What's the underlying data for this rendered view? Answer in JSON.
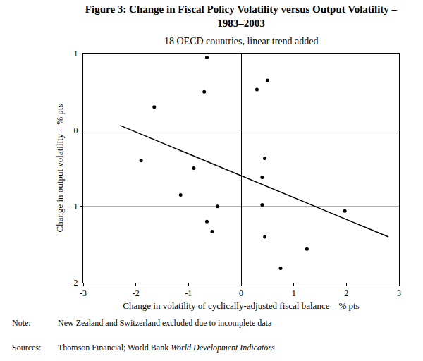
{
  "chart_data": {
    "type": "scatter",
    "title": [
      "Figure 3: Change in Fiscal Policy Volatility versus Output Volatility –",
      "1983–2003"
    ],
    "subtitle": "18 OECD countries, linear trend added",
    "x_label": "Change in volatility of cyclically-adjusted fiscal balance – % pts",
    "y_label": "Change in output volatility – % pts",
    "xlim": [
      -3,
      3
    ],
    "xticks": [
      -3,
      -2,
      -1,
      0,
      1,
      2,
      3
    ],
    "ylim": [
      -2,
      1
    ],
    "yticks": [
      -2,
      -1,
      0,
      1
    ],
    "grid": true,
    "series": [
      {
        "type": "scatter",
        "color": "#000000",
        "marker": "circle",
        "x": [
          -0.65,
          -0.7,
          -1.65,
          0.3,
          0.5,
          -1.9,
          -0.9,
          -1.15,
          -0.45,
          -0.65,
          -0.55,
          0.45,
          0.4,
          0.4,
          0.45,
          1.25,
          0.75,
          1.97
        ],
        "values": [
          0.95,
          0.5,
          0.3,
          0.53,
          0.65,
          -0.4,
          -0.5,
          -0.85,
          -1.0,
          -1.2,
          -1.33,
          -0.37,
          -0.62,
          -0.98,
          -1.4,
          -1.56,
          -1.81,
          -1.06
        ]
      },
      {
        "type": "line",
        "color": "#000000",
        "line_style": "solid",
        "x": [
          -2.3,
          2.8
        ],
        "values": [
          0.06,
          -1.4
        ]
      }
    ],
    "annotations": [
      {
        "label": "Note:",
        "text": "New Zealand and Switzerland excluded due to incomplete data"
      },
      {
        "label": "Sources:",
        "text": "Thomson Financial; World Bank ",
        "italic": "World Development Indicators"
      }
    ]
  }
}
